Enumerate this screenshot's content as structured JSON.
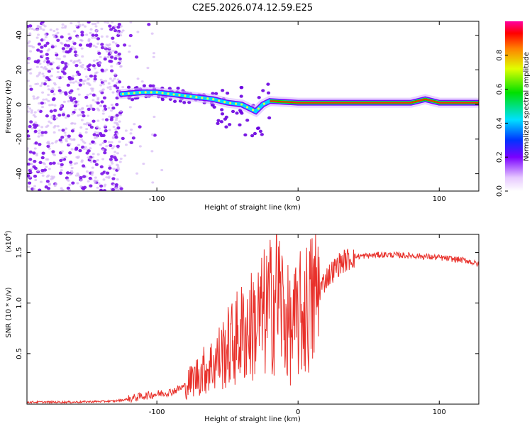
{
  "title": "C2E5.2026.074.12.59.E25",
  "chart_data": [
    {
      "type": "heatmap",
      "xlabel": "Height of straight line (km)",
      "ylabel": "Frequency (Hz)",
      "xlim": [
        -192,
        128
      ],
      "ylim": [
        -50,
        48
      ],
      "x_ticks": [
        -100,
        0,
        100
      ],
      "y_ticks": [
        -40,
        -20,
        0,
        20,
        40
      ],
      "ridge": {
        "x": [
          -125,
          -110,
          -100,
          -90,
          -80,
          -70,
          -60,
          -50,
          -40,
          -35,
          -30,
          -25,
          -20,
          0,
          40,
          80,
          90,
          100,
          128
        ],
        "y": [
          6,
          7,
          7,
          6,
          5,
          4,
          3,
          1,
          0,
          -2,
          -4,
          0,
          2,
          1,
          1,
          1,
          3,
          1,
          1
        ]
      },
      "noise_region_x": [
        -192,
        -125
      ],
      "colorbar": {
        "label": "Normalized spectral amplitude",
        "range": [
          0,
          1
        ],
        "ticks": [
          "0.0",
          "0.2",
          "0.4",
          "0.6",
          "0.8"
        ]
      }
    },
    {
      "type": "line",
      "color": "#e8302a",
      "xlabel": "Height of straight line (km)",
      "ylabel": "SNR (10 * v/v)",
      "y_multiplier": "(x10",
      "y_exponent": "4",
      "xlim": [
        -192,
        128
      ],
      "ylim": [
        0,
        1.68
      ],
      "x_ticks": [
        -100,
        0,
        100
      ],
      "y_ticks": [
        "0.5",
        "1.0",
        "1.5"
      ],
      "series": {
        "x": [
          -192,
          -160,
          -130,
          -120,
          -110,
          -100,
          -90,
          -80,
          -70,
          -60,
          -50,
          -40,
          -30,
          -20,
          -15,
          -10,
          -5,
          0,
          10,
          20,
          30,
          40,
          60,
          80,
          100,
          120,
          128
        ],
        "y": [
          0.02,
          0.02,
          0.03,
          0.05,
          0.08,
          0.1,
          0.12,
          0.18,
          0.3,
          0.4,
          0.55,
          0.7,
          0.8,
          0.95,
          1.15,
          0.9,
          0.7,
          0.85,
          1.0,
          1.25,
          1.4,
          1.46,
          1.48,
          1.47,
          1.45,
          1.42,
          1.38
        ]
      }
    }
  ]
}
